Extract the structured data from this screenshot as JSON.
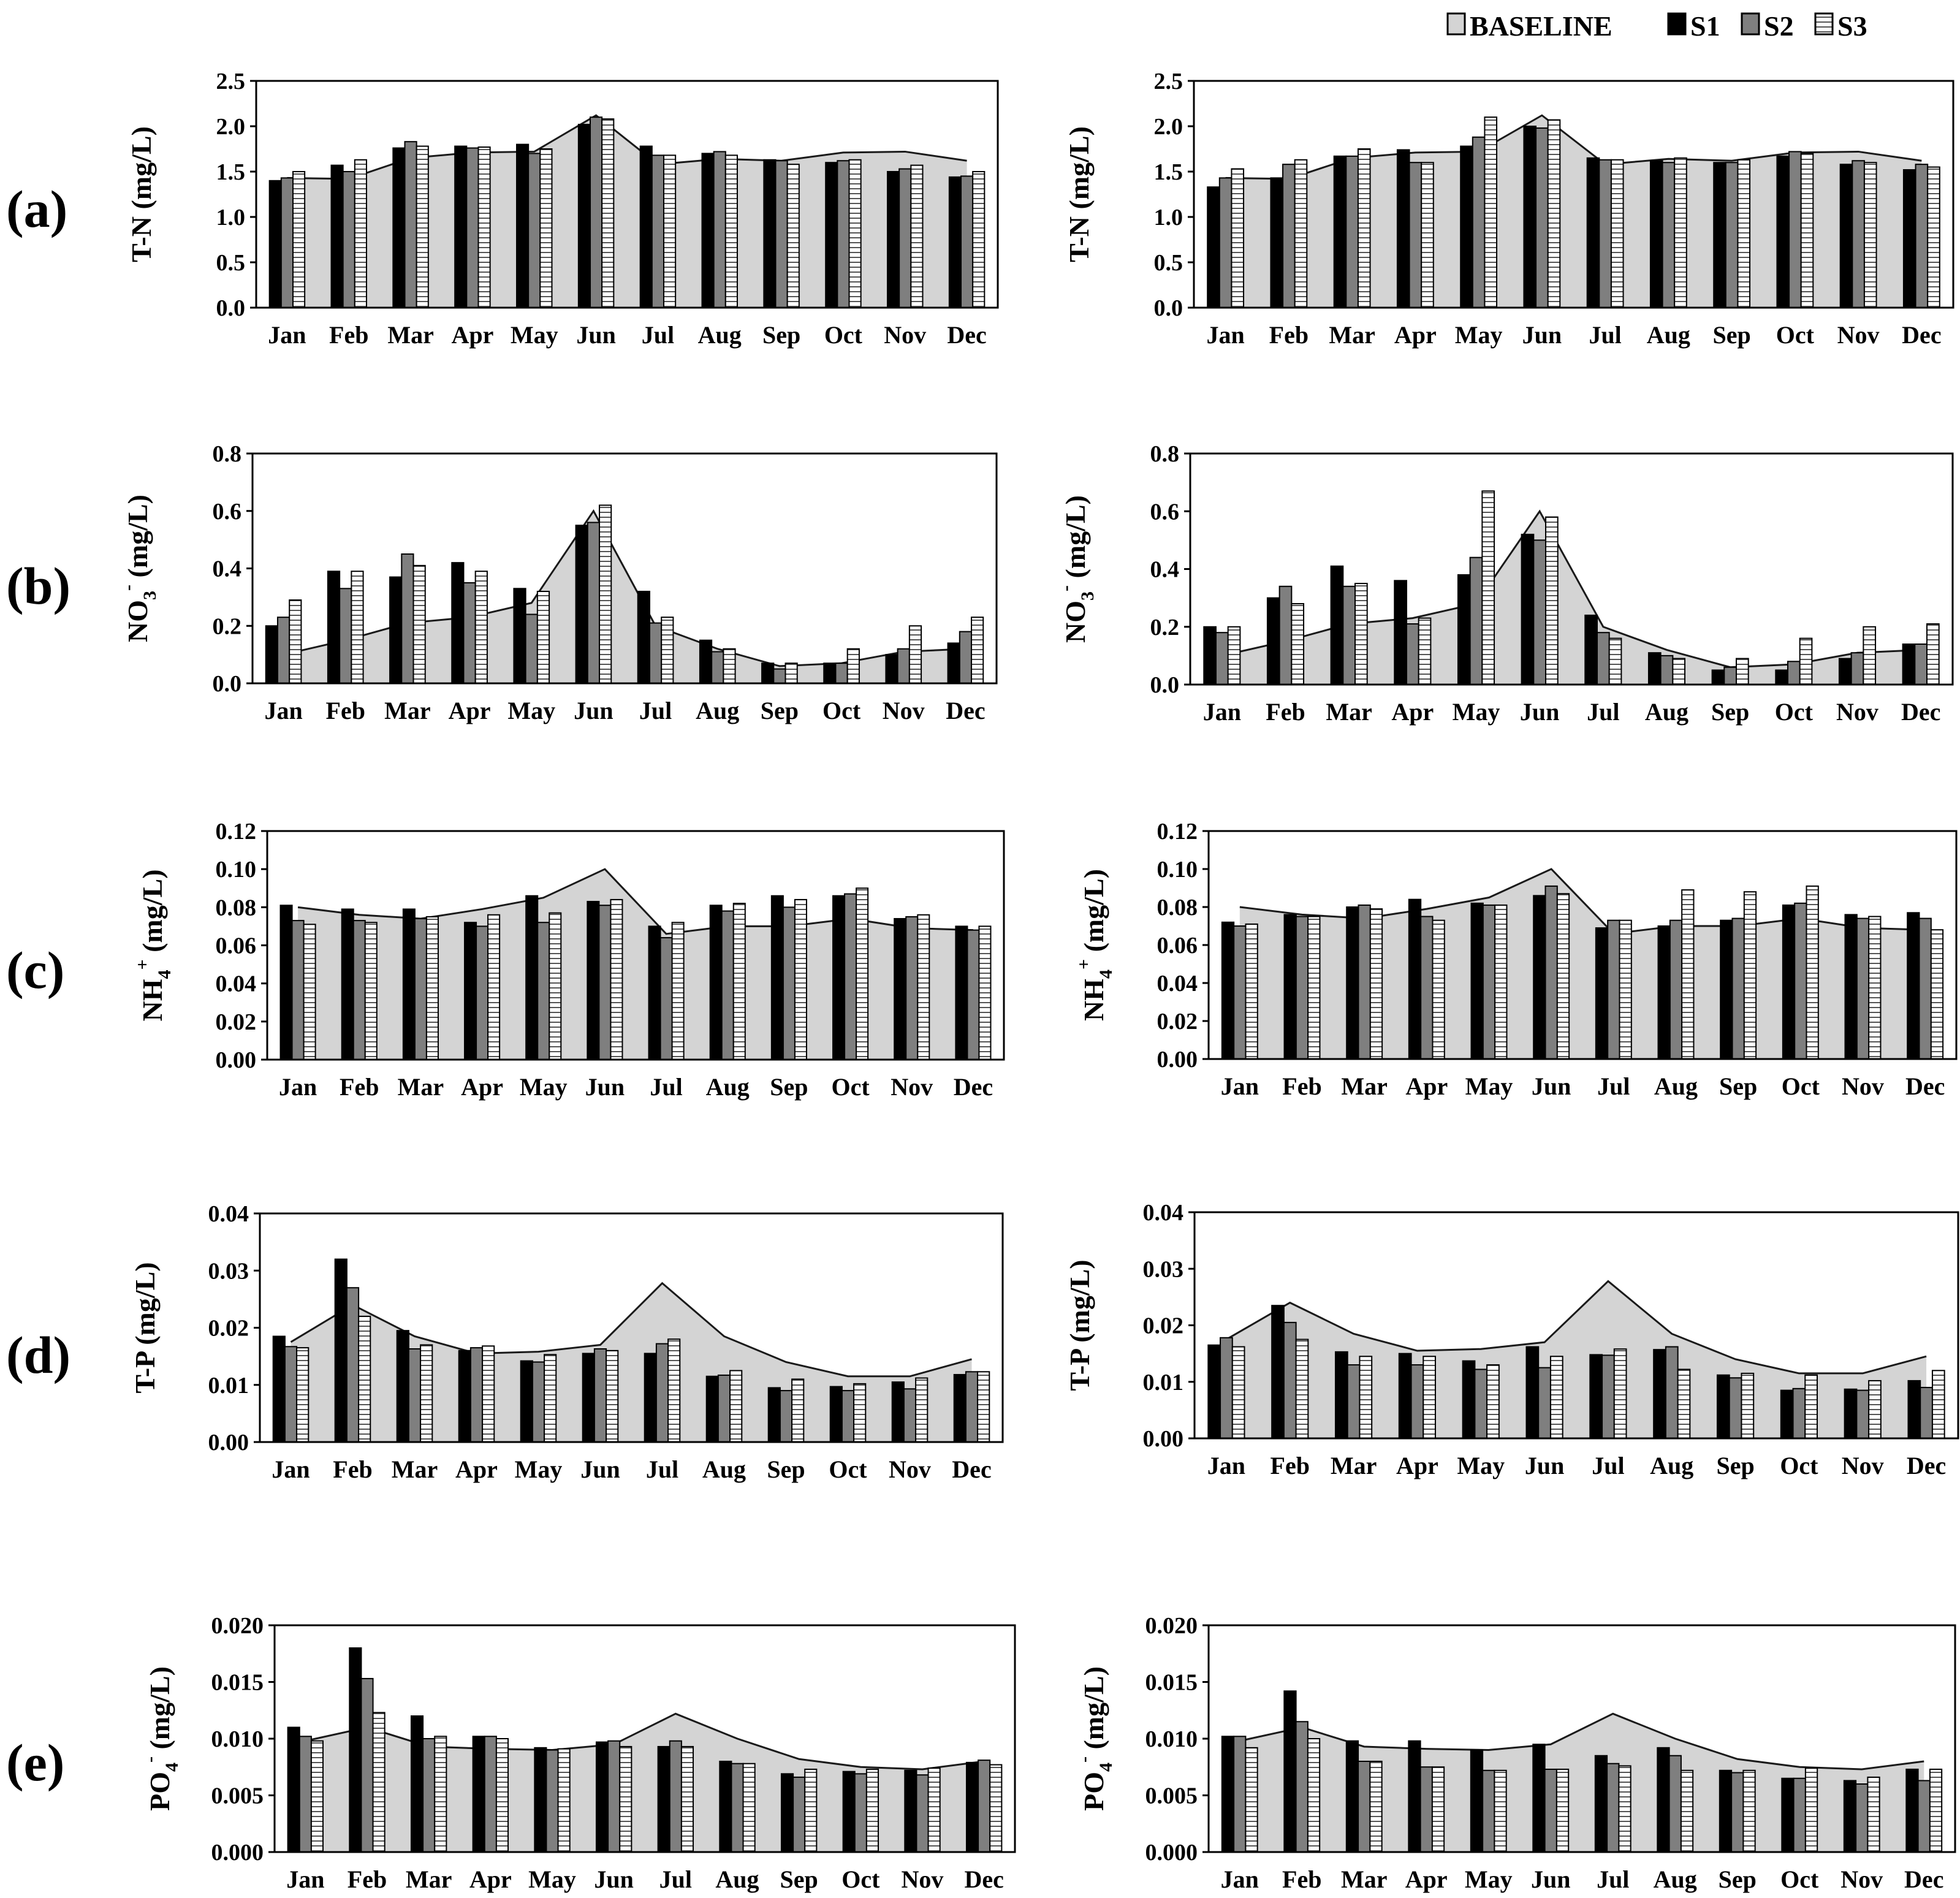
{
  "legend": [
    {
      "key": "baseline",
      "label": "BASELINE"
    },
    {
      "key": "s1",
      "label": "S1"
    },
    {
      "key": "s2",
      "label": "S2"
    },
    {
      "key": "s3",
      "label": "S3"
    }
  ],
  "colors": {
    "baseline_fill": "#d4d4d4",
    "s1": "#000000",
    "s2": "#7f7f7f",
    "s3_fill": "#ffffff",
    "s3_stripe": "#555555",
    "axis": "#000000"
  },
  "rows": [
    {
      "label": "(a)",
      "ylabel_main": "T-N (mg/L)",
      "ylabel_sub": "",
      "ylabel_sup": "",
      "ylabel_suffix": ""
    },
    {
      "label": "(b)",
      "ylabel_main": "NO",
      "ylabel_sub": "3",
      "ylabel_sup": "-",
      "ylabel_suffix": " (mg/L)"
    },
    {
      "label": "(c)",
      "ylabel_main": "NH",
      "ylabel_sub": "4",
      "ylabel_sup": "+",
      "ylabel_suffix": " (mg/L)"
    },
    {
      "label": "(d)",
      "ylabel_main": "T-P (mg/L)",
      "ylabel_sub": "",
      "ylabel_sup": "",
      "ylabel_suffix": ""
    },
    {
      "label": "(e)",
      "ylabel_main": "PO",
      "ylabel_sub": "4",
      "ylabel_sup": "-",
      "ylabel_suffix": " (mg/L)"
    }
  ],
  "chart_data": [
    {
      "id": "a-left",
      "type": "bar",
      "title": "",
      "ylabel": "T-N (mg/L)",
      "xlabel": "",
      "categories": [
        "Jan",
        "Feb",
        "Mar",
        "Apr",
        "May",
        "Jun",
        "Jul",
        "Aug",
        "Sep",
        "Oct",
        "Nov",
        "Dec"
      ],
      "ylim": [
        0,
        2.5
      ],
      "yticks": [
        "0.0",
        "0.5",
        "1.0",
        "1.5",
        "2.0",
        "2.5"
      ],
      "baseline": [
        1.43,
        1.42,
        1.65,
        1.71,
        1.72,
        2.12,
        1.58,
        1.64,
        1.62,
        1.71,
        1.72,
        1.62
      ],
      "series": [
        {
          "name": "S1",
          "values": [
            1.4,
            1.57,
            1.76,
            1.78,
            1.8,
            2.02,
            1.78,
            1.7,
            1.63,
            1.6,
            1.5,
            1.44
          ]
        },
        {
          "name": "S2",
          "values": [
            1.43,
            1.5,
            1.83,
            1.76,
            1.7,
            2.1,
            1.68,
            1.72,
            1.62,
            1.62,
            1.53,
            1.45
          ]
        },
        {
          "name": "S3",
          "values": [
            1.5,
            1.63,
            1.78,
            1.77,
            1.75,
            2.08,
            1.68,
            1.68,
            1.58,
            1.63,
            1.57,
            1.5
          ]
        }
      ]
    },
    {
      "id": "a-right",
      "type": "bar",
      "title": "",
      "ylabel": "T-N (mg/L)",
      "xlabel": "",
      "categories": [
        "Jan",
        "Feb",
        "Mar",
        "Apr",
        "May",
        "Jun",
        "Jul",
        "Aug",
        "Sep",
        "Oct",
        "Nov",
        "Dec"
      ],
      "ylim": [
        0,
        2.5
      ],
      "yticks": [
        "0.0",
        "0.5",
        "1.0",
        "1.5",
        "2.0",
        "2.5"
      ],
      "baseline": [
        1.43,
        1.42,
        1.65,
        1.71,
        1.72,
        2.12,
        1.58,
        1.64,
        1.62,
        1.71,
        1.72,
        1.62
      ],
      "series": [
        {
          "name": "S1",
          "values": [
            1.33,
            1.43,
            1.67,
            1.74,
            1.78,
            2.0,
            1.65,
            1.62,
            1.6,
            1.67,
            1.58,
            1.52
          ]
        },
        {
          "name": "S2",
          "values": [
            1.43,
            1.58,
            1.67,
            1.6,
            1.88,
            1.98,
            1.63,
            1.6,
            1.6,
            1.72,
            1.62,
            1.58
          ]
        },
        {
          "name": "S3",
          "values": [
            1.53,
            1.63,
            1.75,
            1.6,
            2.1,
            2.07,
            1.63,
            1.65,
            1.63,
            1.7,
            1.6,
            1.55
          ]
        }
      ]
    },
    {
      "id": "b-left",
      "type": "bar",
      "title": "",
      "ylabel": "NO3- (mg/L)",
      "xlabel": "",
      "categories": [
        "Jan",
        "Feb",
        "Mar",
        "Apr",
        "May",
        "Jun",
        "Jul",
        "Aug",
        "Sep",
        "Oct",
        "Nov",
        "Dec"
      ],
      "ylim": [
        0,
        0.8
      ],
      "yticks": [
        "0.0",
        "0.2",
        "0.4",
        "0.6",
        "0.8"
      ],
      "baseline": [
        0.1,
        0.15,
        0.21,
        0.23,
        0.28,
        0.6,
        0.2,
        0.12,
        0.06,
        0.07,
        0.11,
        0.12
      ],
      "series": [
        {
          "name": "S1",
          "values": [
            0.2,
            0.39,
            0.37,
            0.42,
            0.33,
            0.55,
            0.32,
            0.15,
            0.07,
            0.07,
            0.1,
            0.14
          ]
        },
        {
          "name": "S2",
          "values": [
            0.23,
            0.33,
            0.45,
            0.35,
            0.24,
            0.56,
            0.21,
            0.11,
            0.05,
            0.07,
            0.12,
            0.18
          ]
        },
        {
          "name": "S3",
          "values": [
            0.29,
            0.39,
            0.41,
            0.39,
            0.32,
            0.62,
            0.23,
            0.12,
            0.07,
            0.12,
            0.2,
            0.23
          ]
        }
      ]
    },
    {
      "id": "b-right",
      "type": "bar",
      "title": "",
      "ylabel": "NO3- (mg/L)",
      "xlabel": "",
      "categories": [
        "Jan",
        "Feb",
        "Mar",
        "Apr",
        "May",
        "Jun",
        "Jul",
        "Aug",
        "Sep",
        "Oct",
        "Nov",
        "Dec"
      ],
      "ylim": [
        0,
        0.8
      ],
      "yticks": [
        "0.0",
        "0.2",
        "0.4",
        "0.6",
        "0.8"
      ],
      "baseline": [
        0.1,
        0.15,
        0.21,
        0.23,
        0.28,
        0.6,
        0.2,
        0.12,
        0.06,
        0.07,
        0.11,
        0.12
      ],
      "series": [
        {
          "name": "S1",
          "values": [
            0.2,
            0.3,
            0.41,
            0.36,
            0.38,
            0.52,
            0.24,
            0.11,
            0.05,
            0.05,
            0.09,
            0.14
          ]
        },
        {
          "name": "S2",
          "values": [
            0.18,
            0.34,
            0.34,
            0.21,
            0.44,
            0.5,
            0.18,
            0.1,
            0.06,
            0.08,
            0.11,
            0.14
          ]
        },
        {
          "name": "S3",
          "values": [
            0.2,
            0.28,
            0.35,
            0.23,
            0.67,
            0.58,
            0.16,
            0.09,
            0.09,
            0.16,
            0.2,
            0.21
          ]
        }
      ]
    },
    {
      "id": "c-left",
      "type": "bar",
      "title": "",
      "ylabel": "NH4+ (mg/L)",
      "xlabel": "",
      "categories": [
        "Jan",
        "Feb",
        "Mar",
        "Apr",
        "May",
        "Jun",
        "Jul",
        "Aug",
        "Sep",
        "Oct",
        "Nov",
        "Dec"
      ],
      "ylim": [
        0,
        0.12
      ],
      "yticks": [
        "0.00",
        "0.02",
        "0.04",
        "0.06",
        "0.08",
        "0.10",
        "0.12"
      ],
      "baseline": [
        0.08,
        0.076,
        0.074,
        0.079,
        0.085,
        0.1,
        0.066,
        0.07,
        0.07,
        0.074,
        0.069,
        0.068
      ],
      "series": [
        {
          "name": "S1",
          "values": [
            0.081,
            0.079,
            0.079,
            0.072,
            0.086,
            0.083,
            0.07,
            0.081,
            0.086,
            0.086,
            0.074,
            0.07
          ]
        },
        {
          "name": "S2",
          "values": [
            0.073,
            0.073,
            0.074,
            0.07,
            0.072,
            0.081,
            0.064,
            0.078,
            0.08,
            0.087,
            0.075,
            0.068
          ]
        },
        {
          "name": "S3",
          "values": [
            0.071,
            0.072,
            0.075,
            0.076,
            0.077,
            0.084,
            0.072,
            0.082,
            0.084,
            0.09,
            0.076,
            0.07
          ]
        }
      ]
    },
    {
      "id": "c-right",
      "type": "bar",
      "title": "",
      "ylabel": "NH4+ (mg/L)",
      "xlabel": "",
      "categories": [
        "Jan",
        "Feb",
        "Mar",
        "Apr",
        "May",
        "Jun",
        "Jul",
        "Aug",
        "Sep",
        "Oct",
        "Nov",
        "Dec"
      ],
      "ylim": [
        0,
        0.12
      ],
      "yticks": [
        "0.00",
        "0.02",
        "0.04",
        "0.06",
        "0.08",
        "0.10",
        "0.12"
      ],
      "baseline": [
        0.08,
        0.076,
        0.074,
        0.079,
        0.085,
        0.1,
        0.066,
        0.07,
        0.07,
        0.074,
        0.069,
        0.068
      ],
      "series": [
        {
          "name": "S1",
          "values": [
            0.072,
            0.076,
            0.08,
            0.084,
            0.082,
            0.086,
            0.069,
            0.07,
            0.073,
            0.081,
            0.076,
            0.077
          ]
        },
        {
          "name": "S2",
          "values": [
            0.07,
            0.075,
            0.081,
            0.075,
            0.081,
            0.091,
            0.073,
            0.073,
            0.074,
            0.082,
            0.074,
            0.074
          ]
        },
        {
          "name": "S3",
          "values": [
            0.071,
            0.075,
            0.079,
            0.073,
            0.081,
            0.087,
            0.073,
            0.089,
            0.088,
            0.091,
            0.075,
            0.068
          ]
        }
      ]
    },
    {
      "id": "d-left",
      "type": "bar",
      "title": "",
      "ylabel": "T-P (mg/L)",
      "xlabel": "",
      "categories": [
        "Jan",
        "Feb",
        "Mar",
        "Apr",
        "May",
        "Jun",
        "Jul",
        "Aug",
        "Sep",
        "Oct",
        "Nov",
        "Dec"
      ],
      "ylim": [
        0,
        0.04
      ],
      "yticks": [
        "0.00",
        "0.01",
        "0.02",
        "0.03",
        "0.04"
      ],
      "baseline": [
        0.0175,
        0.024,
        0.0185,
        0.0155,
        0.0158,
        0.017,
        0.0278,
        0.0185,
        0.014,
        0.0115,
        0.0115,
        0.0145
      ],
      "series": [
        {
          "name": "S1",
          "values": [
            0.0185,
            0.032,
            0.0195,
            0.016,
            0.0142,
            0.0155,
            0.0155,
            0.0115,
            0.0095,
            0.0097,
            0.0105,
            0.0118
          ]
        },
        {
          "name": "S2",
          "values": [
            0.0167,
            0.027,
            0.0163,
            0.0165,
            0.014,
            0.0163,
            0.0172,
            0.0117,
            0.009,
            0.009,
            0.0093,
            0.0123
          ]
        },
        {
          "name": "S3",
          "values": [
            0.0165,
            0.022,
            0.017,
            0.0168,
            0.0153,
            0.016,
            0.018,
            0.0125,
            0.011,
            0.0102,
            0.0112,
            0.0123
          ]
        }
      ]
    },
    {
      "id": "d-right",
      "type": "bar",
      "title": "",
      "ylabel": "T-P (mg/L)",
      "xlabel": "",
      "categories": [
        "Jan",
        "Feb",
        "Mar",
        "Apr",
        "May",
        "Jun",
        "Jul",
        "Aug",
        "Sep",
        "Oct",
        "Nov",
        "Dec"
      ],
      "ylim": [
        0,
        0.04
      ],
      "yticks": [
        "0.00",
        "0.01",
        "0.02",
        "0.03",
        "0.04"
      ],
      "baseline": [
        0.0175,
        0.024,
        0.0185,
        0.0155,
        0.0158,
        0.017,
        0.0278,
        0.0185,
        0.014,
        0.0115,
        0.0115,
        0.0145
      ],
      "series": [
        {
          "name": "S1",
          "values": [
            0.0165,
            0.0235,
            0.0153,
            0.015,
            0.0137,
            0.0162,
            0.0148,
            0.0157,
            0.0112,
            0.0085,
            0.0087,
            0.0102
          ]
        },
        {
          "name": "S2",
          "values": [
            0.0178,
            0.0205,
            0.013,
            0.013,
            0.0122,
            0.0125,
            0.0147,
            0.0162,
            0.0107,
            0.0088,
            0.0085,
            0.009
          ]
        },
        {
          "name": "S3",
          "values": [
            0.0162,
            0.0175,
            0.0145,
            0.0145,
            0.013,
            0.0145,
            0.0158,
            0.0122,
            0.0115,
            0.0112,
            0.0102,
            0.012
          ]
        }
      ]
    },
    {
      "id": "e-left",
      "type": "bar",
      "title": "",
      "ylabel": "PO4- (mg/L)",
      "xlabel": "",
      "categories": [
        "Jan",
        "Feb",
        "Mar",
        "Apr",
        "May",
        "Jun",
        "Jul",
        "Aug",
        "Sep",
        "Oct",
        "Nov",
        "Dec"
      ],
      "ylim": [
        0,
        0.02
      ],
      "yticks": [
        "0.000",
        "0.005",
        "0.010",
        "0.015",
        "0.020"
      ],
      "baseline": [
        0.0098,
        0.011,
        0.0093,
        0.0091,
        0.009,
        0.0095,
        0.0122,
        0.01,
        0.0082,
        0.0075,
        0.0073,
        0.008
      ],
      "series": [
        {
          "name": "S1",
          "values": [
            0.011,
            0.018,
            0.012,
            0.0102,
            0.0092,
            0.0097,
            0.0093,
            0.008,
            0.0069,
            0.0071,
            0.0072,
            0.0079
          ]
        },
        {
          "name": "S2",
          "values": [
            0.0102,
            0.0153,
            0.01,
            0.0102,
            0.009,
            0.0098,
            0.0098,
            0.0078,
            0.0066,
            0.0069,
            0.0068,
            0.0081
          ]
        },
        {
          "name": "S3",
          "values": [
            0.0098,
            0.0123,
            0.0102,
            0.01,
            0.0091,
            0.0093,
            0.0093,
            0.0078,
            0.0073,
            0.0073,
            0.0074,
            0.0077
          ]
        }
      ]
    },
    {
      "id": "e-right",
      "type": "bar",
      "title": "",
      "ylabel": "PO4- (mg/L)",
      "xlabel": "",
      "categories": [
        "Jan",
        "Feb",
        "Mar",
        "Apr",
        "May",
        "Jun",
        "Jul",
        "Aug",
        "Sep",
        "Oct",
        "Nov",
        "Dec"
      ],
      "ylim": [
        0,
        0.02
      ],
      "yticks": [
        "0.000",
        "0.005",
        "0.010",
        "0.015",
        "0.020"
      ],
      "baseline": [
        0.0098,
        0.011,
        0.0093,
        0.0091,
        0.009,
        0.0095,
        0.0122,
        0.01,
        0.0082,
        0.0075,
        0.0073,
        0.008
      ],
      "series": [
        {
          "name": "S1",
          "values": [
            0.0102,
            0.0142,
            0.0098,
            0.0098,
            0.009,
            0.0095,
            0.0085,
            0.0092,
            0.0072,
            0.0065,
            0.0063,
            0.0073
          ]
        },
        {
          "name": "S2",
          "values": [
            0.0102,
            0.0115,
            0.008,
            0.0075,
            0.0072,
            0.0073,
            0.0078,
            0.0085,
            0.007,
            0.0065,
            0.006,
            0.0063
          ]
        },
        {
          "name": "S3",
          "values": [
            0.0092,
            0.01,
            0.008,
            0.0075,
            0.0072,
            0.0073,
            0.0076,
            0.0072,
            0.0072,
            0.0074,
            0.0066,
            0.0073
          ]
        }
      ]
    }
  ]
}
